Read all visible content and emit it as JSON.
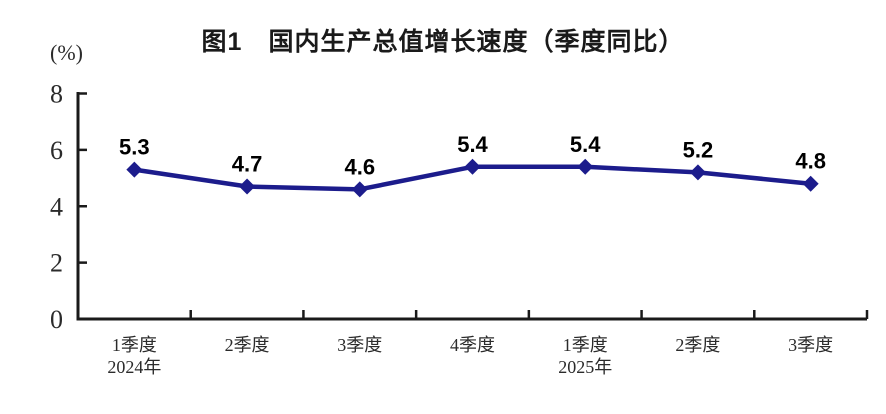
{
  "page": {
    "background": "#ffffff"
  },
  "chart_data": {
    "type": "line",
    "title": "图1　国内生产总值增长速度（季度同比）",
    "unit_label": "(%)",
    "categories": [
      "1季度",
      "2季度",
      "3季度",
      "4季度",
      "1季度",
      "2季度",
      "3季度"
    ],
    "category_sublabels": [
      "2024年",
      "",
      "",
      "",
      "2025年",
      "",
      ""
    ],
    "series": [
      {
        "name": "国内生产总值增长速度（季度同比）",
        "values": [
          5.3,
          4.7,
          4.6,
          5.4,
          5.4,
          5.2,
          4.8
        ]
      }
    ],
    "data_labels": [
      "5.3",
      "4.7",
      "4.6",
      "5.4",
      "5.4",
      "5.2",
      "4.8"
    ],
    "ylim": [
      0,
      8
    ],
    "yticks": [
      0,
      2,
      4,
      6,
      8
    ],
    "xlabel": "",
    "ylabel": "(%)",
    "grid": false,
    "legend": "none",
    "marker": "diamond",
    "colors": {
      "line": "#1c1c8c",
      "marker": "#1c1c8c",
      "axis": "#1a1a1a",
      "tick_label": "#2b2b2b",
      "data_label": "#000000"
    }
  }
}
